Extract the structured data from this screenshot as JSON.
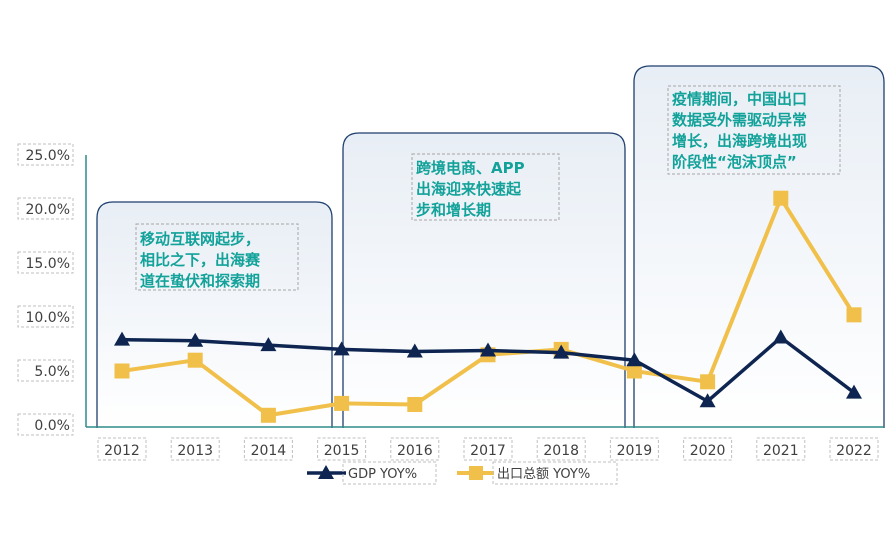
{
  "chart_data": {
    "type": "line",
    "categories": [
      "2012",
      "2013",
      "2014",
      "2015",
      "2016",
      "2017",
      "2018",
      "2019",
      "2020",
      "2021",
      "2022"
    ],
    "y_ticks": [
      "0.0%",
      "5.0%",
      "10.0%",
      "15.0%",
      "20.0%",
      "25.0%"
    ],
    "ylim": [
      0,
      25
    ],
    "series": [
      {
        "name": "GDP YOY%",
        "values": [
          7.9,
          7.8,
          7.4,
          7.0,
          6.8,
          6.9,
          6.7,
          6.0,
          2.2,
          8.1,
          3.0
        ],
        "color": "#0d2550",
        "marker": "triangle"
      },
      {
        "name": "出口总额 YOY%",
        "values": [
          5.0,
          6.0,
          0.9,
          2.0,
          1.9,
          6.5,
          7.0,
          5.0,
          4.0,
          21.0,
          10.2
        ],
        "color": "#f0c04b",
        "marker": "square"
      }
    ],
    "annotations": [
      {
        "lines": [
          "移动互联网起步，",
          "相比之下，出海赛",
          "道在蛰伏和探索期"
        ]
      },
      {
        "lines": [
          "跨境电商、APP",
          "出海迎来快速起",
          "步和增长期"
        ]
      },
      {
        "lines": [
          "疫情期间，中国出口",
          "数据受外需驱动异常",
          "增长，出海跨境出现",
          "阶段性“泡沫顶点”"
        ]
      }
    ],
    "legend_position": "bottom",
    "grid": false
  }
}
